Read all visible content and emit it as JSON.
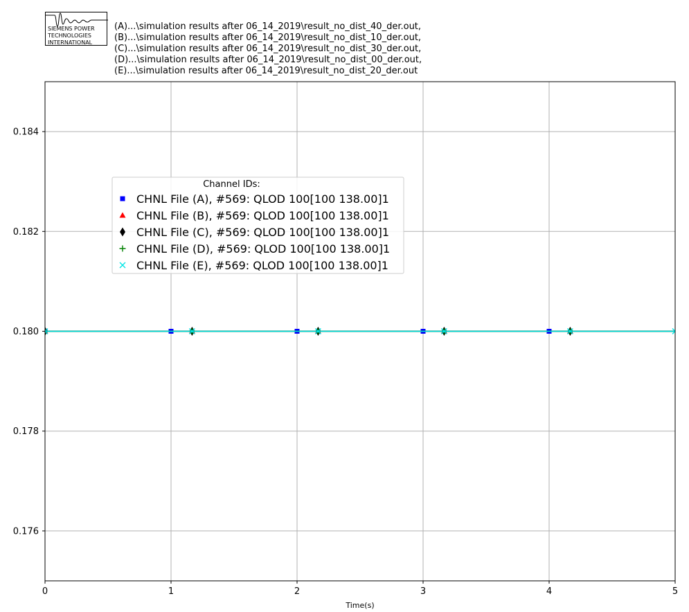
{
  "logo": {
    "icon": "siemens-pti-wave-logo-icon",
    "text": "SIEMENS POWER\nTECHNOLOGIES\nINTERNATIONAL"
  },
  "files": [
    "(A)...\\simulation results after 06_14_2019\\result_no_dist_40_der.out,",
    "(B)...\\simulation results after 06_14_2019\\result_no_dist_10_der.out,",
    "(C)...\\simulation results after 06_14_2019\\result_no_dist_30_der.out,",
    "(D)...\\simulation results after 06_14_2019\\result_no_dist_00_der.out,",
    "(E)...\\simulation results after 06_14_2019\\result_no_dist_20_der.out"
  ],
  "chart_data": {
    "type": "line",
    "title": "",
    "xlabel": "Time(s)",
    "ylabel": "",
    "xlim": [
      0,
      5
    ],
    "ylim": [
      0.175,
      0.185
    ],
    "xticks": [
      0,
      1,
      2,
      3,
      4,
      5
    ],
    "xtick_labels": [
      "0",
      "1",
      "2",
      "3",
      "4",
      "5"
    ],
    "yticks": [
      0.176,
      0.178,
      0.18,
      0.182,
      0.184
    ],
    "ytick_labels": [
      "0.176",
      "0.178",
      "0.180",
      "0.182",
      "0.184"
    ],
    "grid": true,
    "legend": {
      "title": "Channel IDs:",
      "placement": "upper-left"
    },
    "series": [
      {
        "name": "CHNL File (A), #569: QLOD 100[100 138.00]1",
        "color": "#0000ff",
        "marker": "square",
        "x": [
          0,
          1,
          2,
          3,
          4,
          5
        ],
        "y": [
          0.18,
          0.18,
          0.18,
          0.18,
          0.18,
          0.18
        ],
        "marker_x": [
          0,
          1,
          2,
          3,
          4
        ]
      },
      {
        "name": "CHNL File (B), #569: QLOD 100[100 138.00]1",
        "color": "#ff0000",
        "marker": "triangle",
        "x": [
          0,
          1.167,
          2.167,
          3.167,
          4.167,
          5
        ],
        "y": [
          0.18,
          0.18,
          0.18,
          0.18,
          0.18,
          0.18
        ],
        "marker_x": [
          0,
          1.167,
          2.167,
          3.167,
          4.167
        ]
      },
      {
        "name": "CHNL File (C), #569: QLOD 100[100 138.00]1",
        "color": "#000000",
        "marker": "diamond",
        "x": [
          0,
          1.167,
          2.167,
          3.167,
          4.167,
          5
        ],
        "y": [
          0.18,
          0.18,
          0.18,
          0.18,
          0.18,
          0.18
        ],
        "marker_x": [
          0,
          1.167,
          2.167,
          3.167,
          4.167
        ]
      },
      {
        "name": "CHNL File (D), #569: QLOD 100[100 138.00]1",
        "color": "#008000",
        "marker": "plus",
        "x": [
          0,
          1.167,
          2.167,
          3.167,
          4.167,
          5
        ],
        "y": [
          0.18,
          0.18,
          0.18,
          0.18,
          0.18,
          0.18
        ],
        "marker_x": [
          0,
          1.167,
          2.167,
          3.167,
          4.167
        ]
      },
      {
        "name": "CHNL File (E), #569: QLOD 100[100 138.00]1",
        "color": "#00e5e5",
        "marker": "x",
        "x": [
          0,
          1.167,
          2.167,
          3.167,
          4.167,
          5
        ],
        "y": [
          0.18,
          0.18,
          0.18,
          0.18,
          0.18,
          0.18
        ],
        "marker_x": [
          0,
          1.167,
          2.167,
          3.167,
          4.167,
          5
        ]
      }
    ]
  }
}
